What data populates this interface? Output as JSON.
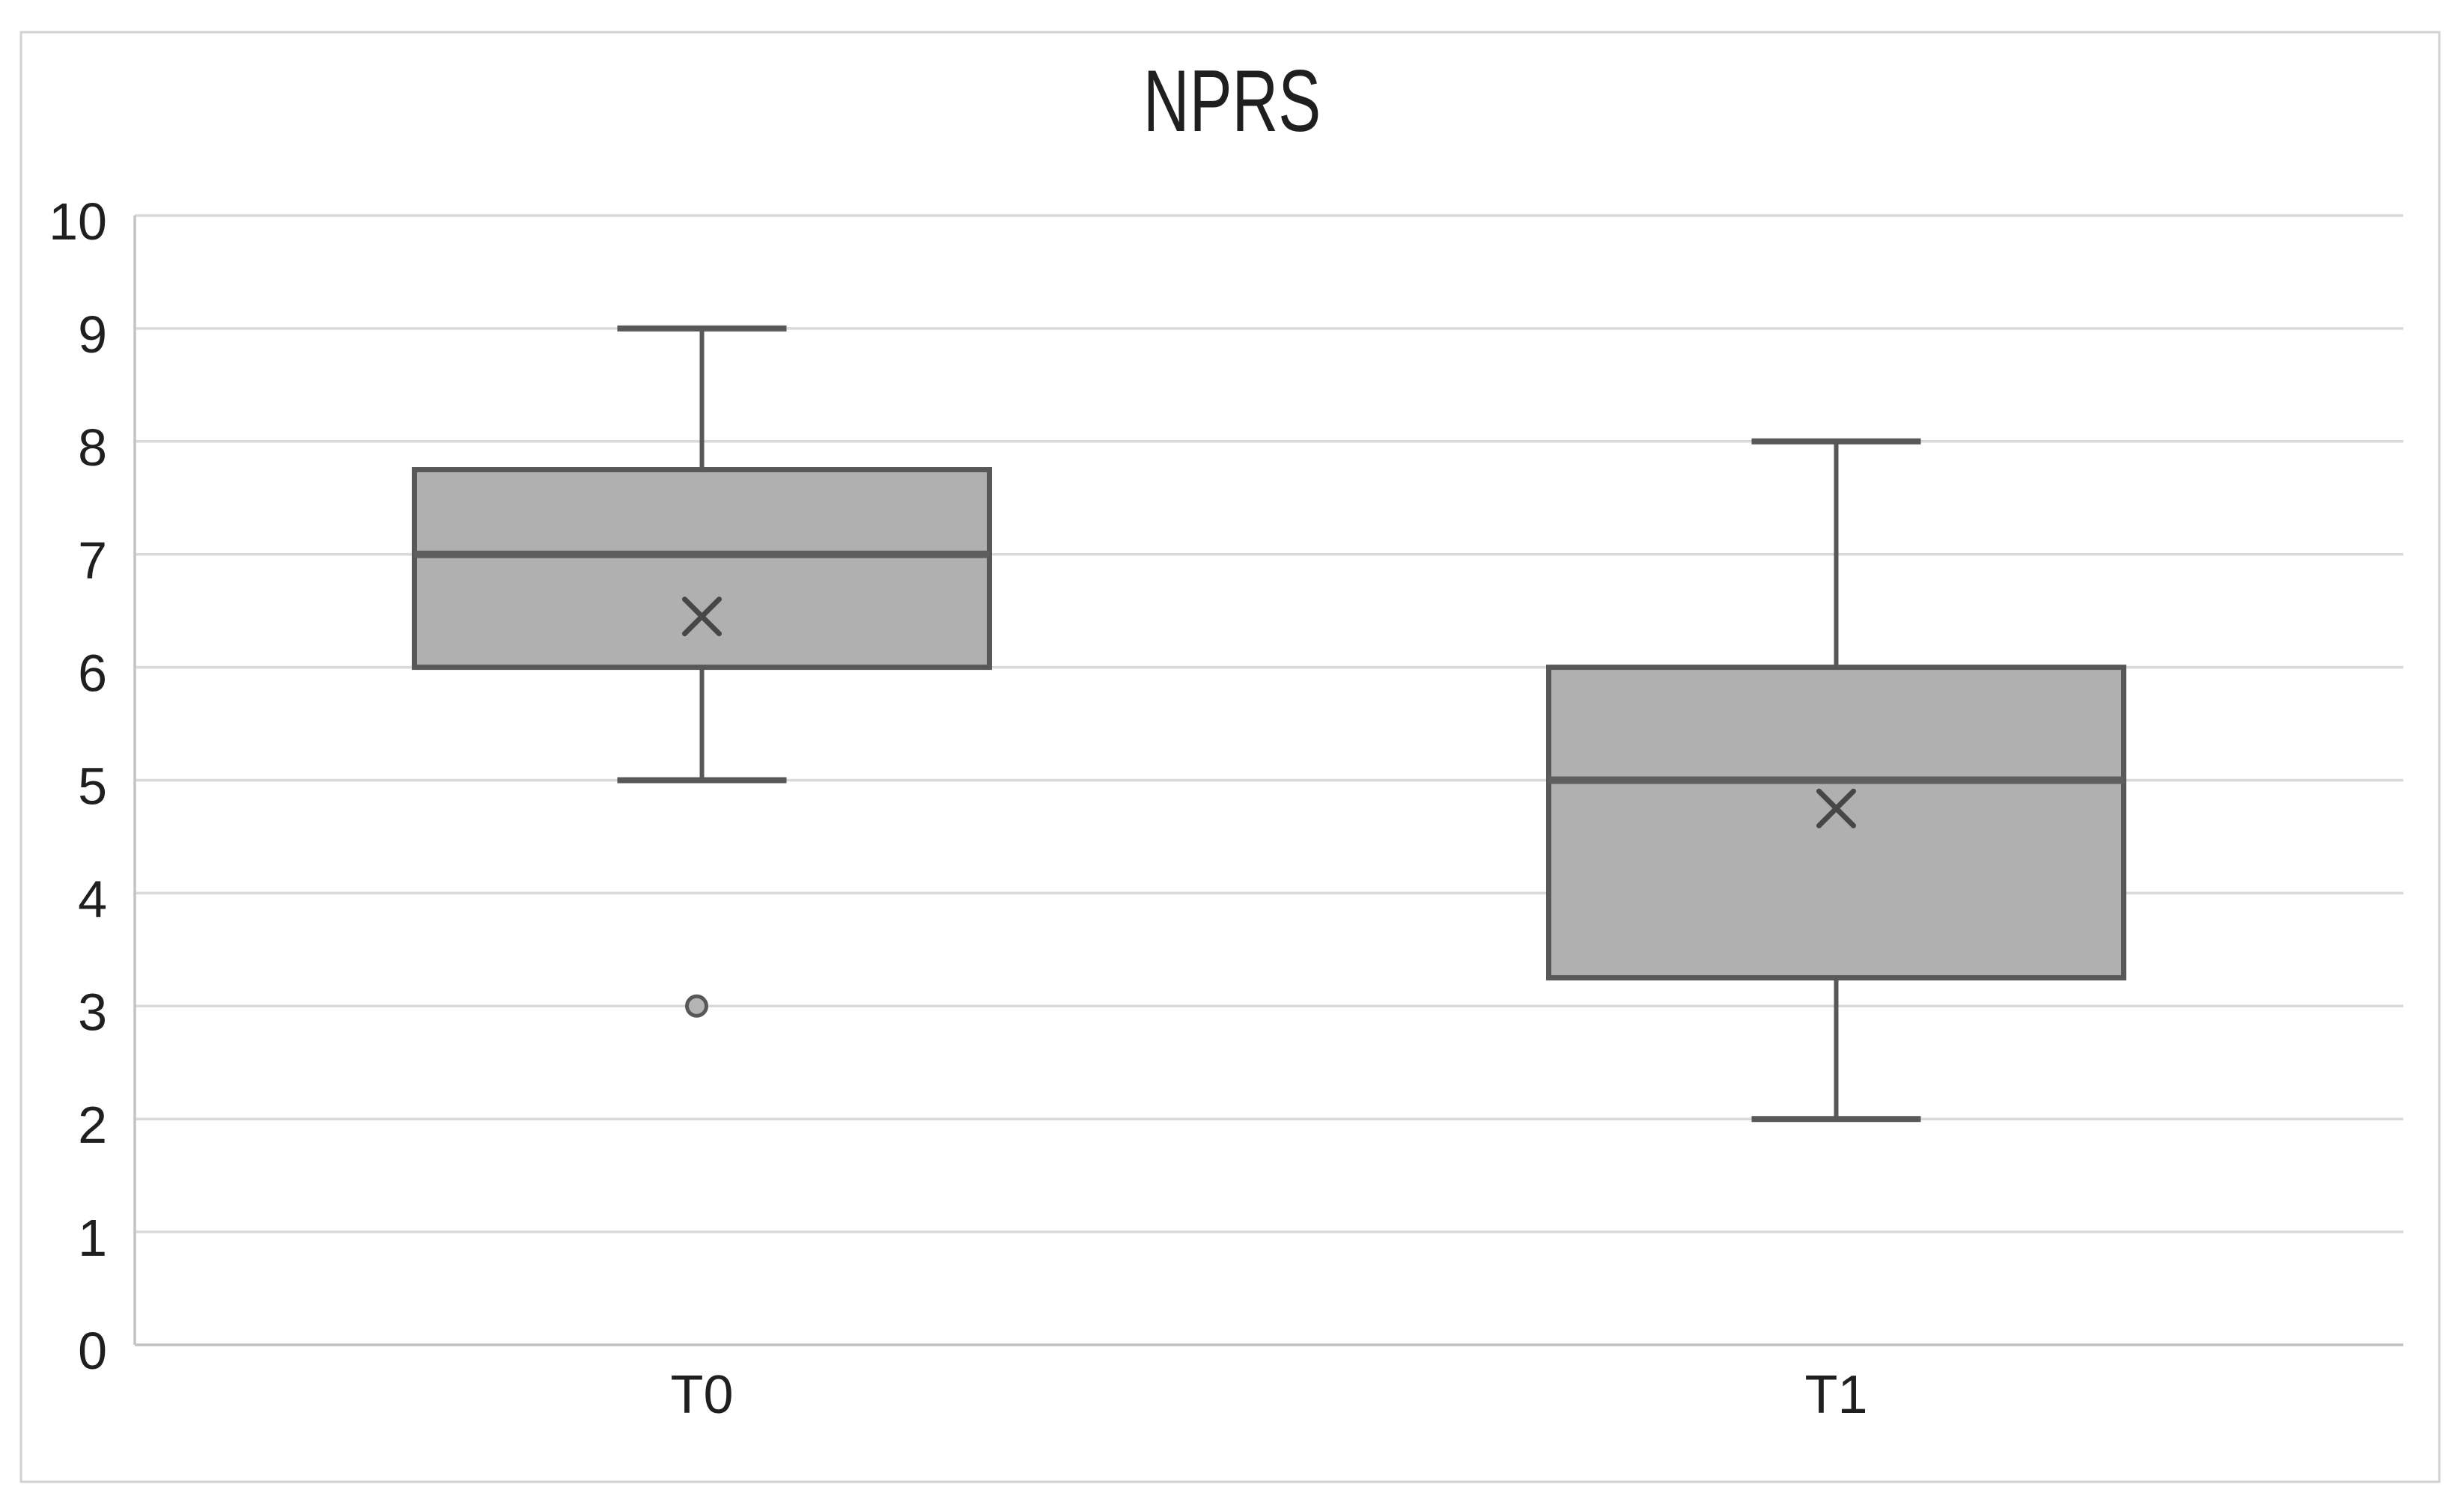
{
  "chart_data": {
    "type": "boxplot",
    "title": "NPRS",
    "categories": [
      "T0",
      "T1"
    ],
    "xlabel": "",
    "ylabel": "",
    "ylim": [
      0,
      10
    ],
    "y_axis": {
      "min": 0,
      "max": 10,
      "tick_step": 1,
      "ticks": [
        0,
        1,
        2,
        3,
        4,
        5,
        6,
        7,
        8,
        9,
        10
      ]
    },
    "series": [
      {
        "category": "T0",
        "whisker_low": 5,
        "q1": 6,
        "median": 7,
        "q3": 7.75,
        "whisker_high": 9,
        "mean": 6.45,
        "outliers": [
          3
        ]
      },
      {
        "category": "T1",
        "whisker_low": 2,
        "q1": 3.25,
        "median": 5,
        "q3": 6,
        "whisker_high": 8,
        "mean": 4.75,
        "outliers": []
      }
    ],
    "grid": "horizontal-major",
    "legend": "none",
    "colors": {
      "background": "#ffffff",
      "figure_border": "#d2d2d2",
      "gridline": "#d9d9d9",
      "axis_line": "#c3c3c3",
      "box_fill": "#b0b0b0",
      "box_border": "#585858",
      "median_line": "#5e5e5e",
      "whisker": "#585858",
      "mean_marker": "#474747",
      "outlier_stroke": "#585858",
      "outlier_fill": "#b5b5b5",
      "tick_text": "#1f1f1f",
      "title_text": "#1f1f1f"
    }
  }
}
